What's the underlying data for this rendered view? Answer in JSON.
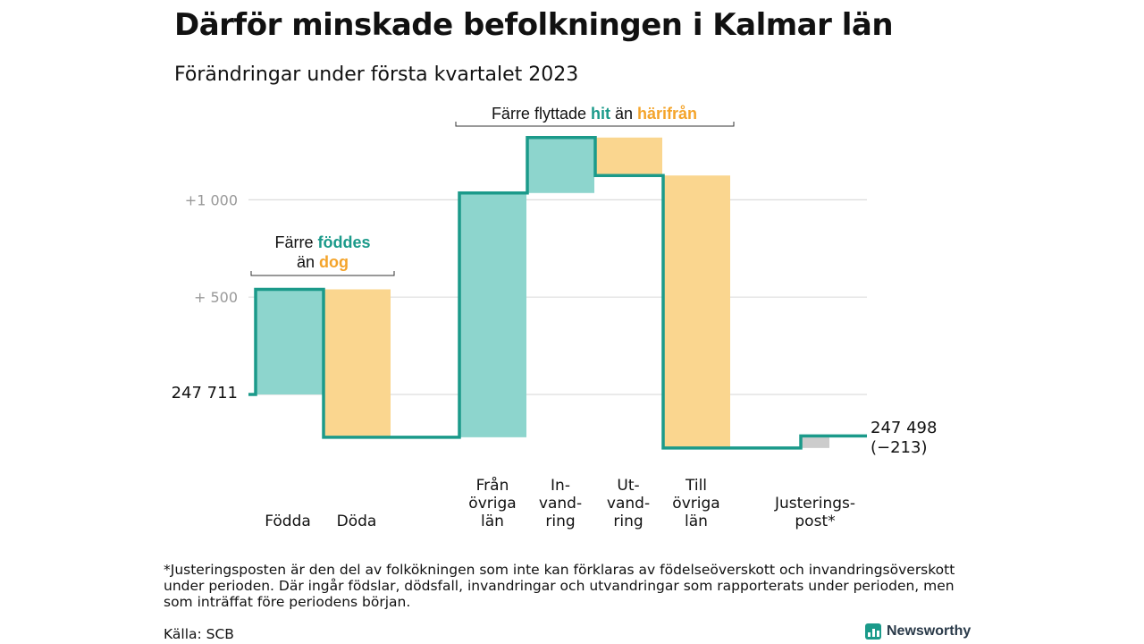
{
  "header": {
    "title": "Därför minskade befolkningen i Kalmar län",
    "subtitle": "Förändringar under första kvartalet 2023"
  },
  "chart_data": {
    "type": "waterfall",
    "start_label": "247 711",
    "end_label": "247 498",
    "end_change_label": "(−213)",
    "y_ticks": [
      {
        "value": 1000,
        "label": "+1 000"
      },
      {
        "value": 500,
        "label": "+ 500"
      },
      {
        "value": 0,
        "label": ""
      }
    ],
    "grid": true,
    "steps": [
      {
        "label_lines": [
          "Födda"
        ],
        "value": 540,
        "color": "#8dd5cd"
      },
      {
        "label_lines": [
          "Döda"
        ],
        "value": -760,
        "color": "#fad68f"
      },
      {
        "label_lines": [
          "Från",
          "övriga",
          "län"
        ],
        "value": 1255,
        "color": "#8dd5cd"
      },
      {
        "label_lines": [
          "In-",
          "vand-",
          "ring"
        ],
        "value": 285,
        "color": "#8dd5cd"
      },
      {
        "label_lines": [
          "Ut-",
          "vand-",
          "ring"
        ],
        "value": -195,
        "color": "#fad68f"
      },
      {
        "label_lines": [
          "Till",
          "övriga",
          "län"
        ],
        "value": -1400,
        "color": "#fad68f"
      },
      {
        "label_lines": [
          "Justerings-",
          "post*"
        ],
        "value": 62,
        "color": "#cccccc"
      }
    ],
    "annotations": [
      {
        "parts": [
          {
            "text": "Färre ",
            "color": "#111111"
          },
          {
            "text": "föddes",
            "color": "#1b9a8a",
            "bold": true
          }
        ],
        "line2": [
          {
            "text": "än ",
            "color": "#111111"
          },
          {
            "text": "dog",
            "color": "#f4a42b",
            "bold": true
          }
        ]
      },
      {
        "parts": [
          {
            "text": "Färre flyttade ",
            "color": "#111111"
          },
          {
            "text": "hit",
            "color": "#1b9a8a",
            "bold": true
          },
          {
            "text": " än ",
            "color": "#111111"
          },
          {
            "text": "härifrån",
            "color": "#f4a42b",
            "bold": true
          }
        ]
      }
    ],
    "colors": {
      "line": "#1b9a8a",
      "gain": "#8dd5cd",
      "loss": "#fad68f",
      "adjust": "#cccccc",
      "grid": "#dddddd",
      "tick": "#999999"
    }
  },
  "footer": {
    "footnote": "*Justeringsposten är den del av folkökningen som inte kan förklaras av födelseöverskott och invandringsöverskott under perioden. Där ingår födslar, dödsfall, invandringar och utvandringar som rapporterats under perioden, men som inträffat före periodens början.",
    "source": "Källa: SCB",
    "brand": "Newsworthy"
  }
}
